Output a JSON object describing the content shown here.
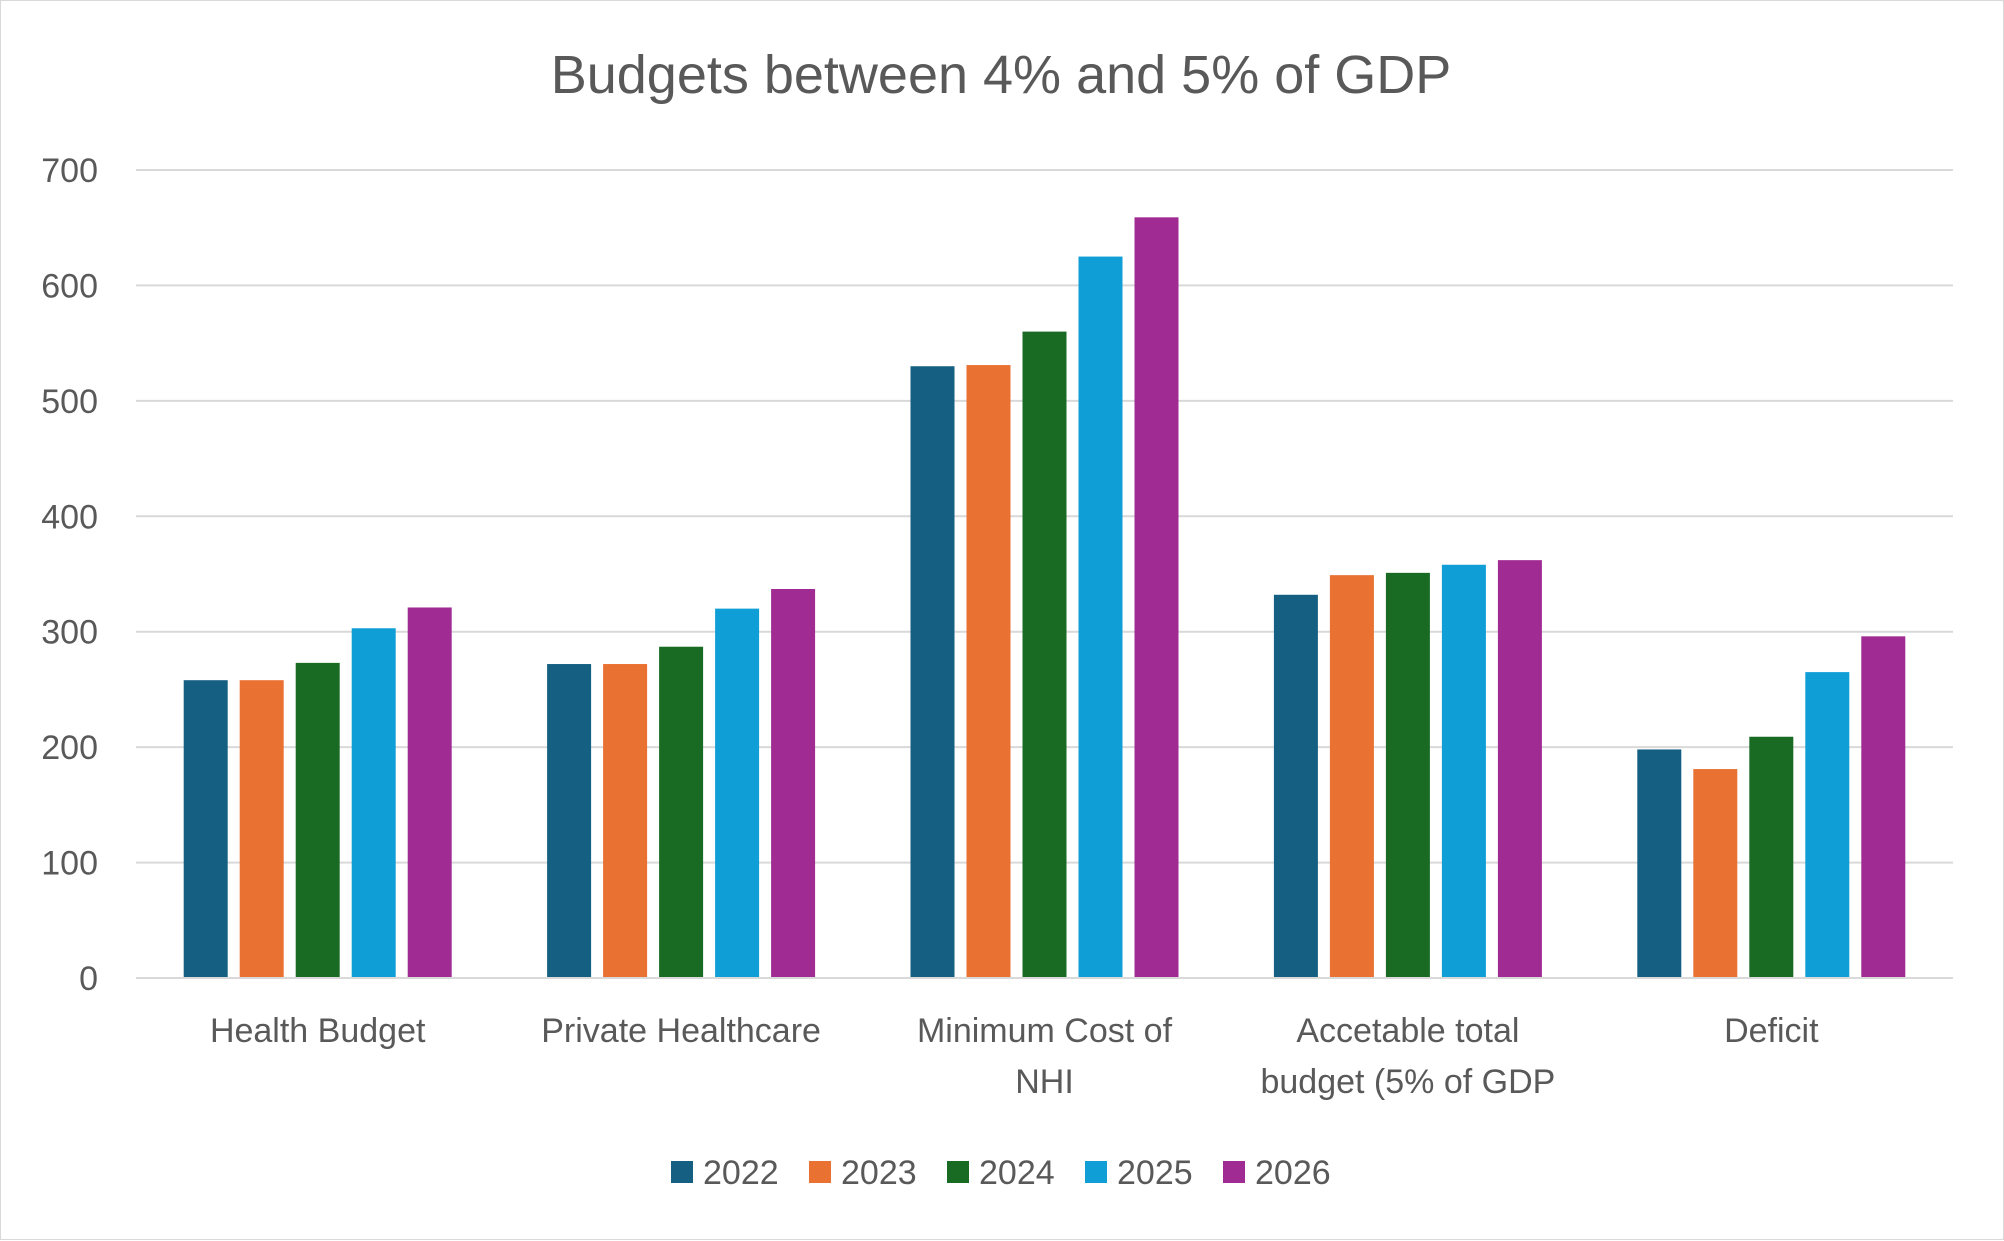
{
  "chart_data": {
    "type": "bar",
    "title": "Budgets between 4% and 5% of GDP",
    "xlabel": "",
    "ylabel": "",
    "ylim": [
      0,
      700
    ],
    "yticks": [
      0,
      100,
      200,
      300,
      400,
      500,
      600,
      700
    ],
    "grid": true,
    "legend_position": "bottom",
    "categories": [
      [
        "Health Budget"
      ],
      [
        "Private Healthcare"
      ],
      [
        "Minimum Cost of",
        "NHI"
      ],
      [
        "Accetable total",
        "budget (5% of GDP"
      ],
      [
        "Deficit"
      ]
    ],
    "series": [
      {
        "name": "2022",
        "color": "#156082",
        "values": [
          258,
          272,
          530,
          332,
          198
        ]
      },
      {
        "name": "2023",
        "color": "#E97132",
        "values": [
          258,
          272,
          531,
          349,
          181
        ]
      },
      {
        "name": "2024",
        "color": "#196B24",
        "values": [
          273,
          287,
          560,
          351,
          209
        ]
      },
      {
        "name": "2025",
        "color": "#0F9ED5",
        "values": [
          303,
          320,
          625,
          358,
          265
        ]
      },
      {
        "name": "2026",
        "color": "#A02B93",
        "values": [
          321,
          337,
          659,
          362,
          296
        ]
      }
    ]
  }
}
